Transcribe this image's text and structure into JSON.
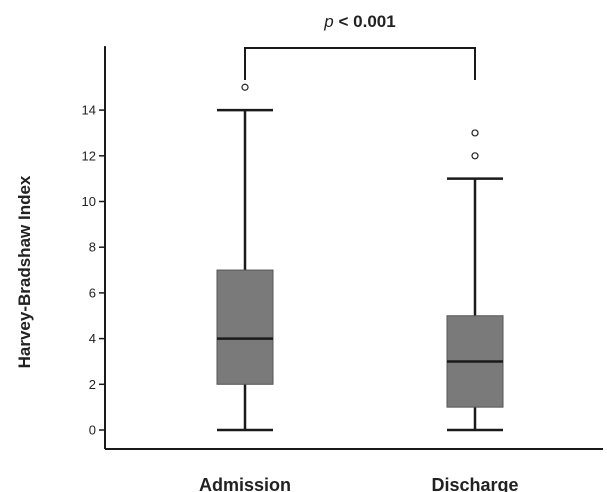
{
  "chart_data": {
    "type": "boxplot",
    "title": "",
    "xlabel": "",
    "ylabel": "Harvey-Bradshaw Index",
    "ylim": [
      -0.8,
      16.8
    ],
    "yticks": [
      0,
      2,
      4,
      6,
      8,
      10,
      12,
      14
    ],
    "grid": false,
    "categories": [
      "Admission",
      "Discharge"
    ],
    "boxes": [
      {
        "category": "Admission",
        "whisker_low": 0,
        "q1": 2,
        "median": 4,
        "q3": 7,
        "whisker_high": 14,
        "outliers": [
          15
        ]
      },
      {
        "category": "Discharge",
        "whisker_low": 0,
        "q1": 1,
        "median": 3,
        "q3": 5,
        "whisker_high": 11,
        "outliers": [
          12,
          13
        ]
      }
    ],
    "box_color": "#7a7a7a",
    "line_color": "#1a1a1a",
    "annotation": {
      "p_symbol": "p",
      "text": " < 0.001",
      "between": [
        "Admission",
        "Discharge"
      ]
    }
  }
}
